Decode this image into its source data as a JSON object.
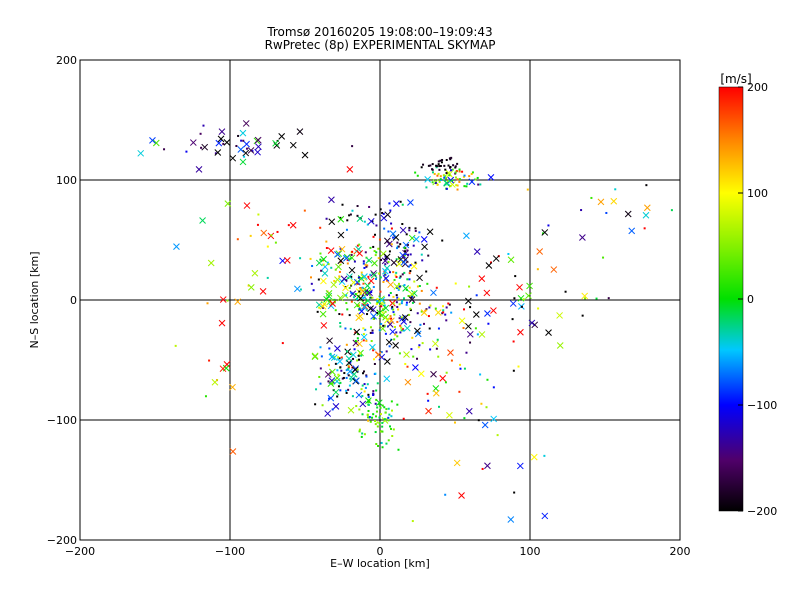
{
  "title_line1": "Tromsø 20160205 19:08:00–19:09:43",
  "title_line2": "RwPretec (8p) EXPERIMENTAL SKYMAP",
  "chart_data": {
    "type": "scatter",
    "title": "Tromsø 20160205 19:08:00–19:09:43",
    "subtitle": "RwPretec (8p) EXPERIMENTAL SKYMAP",
    "xlabel": "E–W location [km]",
    "ylabel": "N–S location [km]",
    "xlim": [
      -200,
      200
    ],
    "ylim": [
      -200,
      200
    ],
    "xticks": [
      -200,
      -100,
      0,
      100,
      200
    ],
    "yticks": [
      -200,
      -100,
      0,
      100,
      200
    ],
    "grid": true,
    "colorbar": {
      "label": "[m/s]",
      "range": [
        -200,
        200
      ],
      "ticks": [
        -200,
        -100,
        0,
        100,
        200
      ]
    },
    "markers": [
      "dot",
      "cross"
    ],
    "clusters": [
      {
        "x": -95,
        "y": 130,
        "sx": 25,
        "sy": 8,
        "n": 45,
        "v": -150,
        "vs": 80,
        "crossFrac": 0.7
      },
      {
        "x": 50,
        "y": 100,
        "sx": 10,
        "sy": 5,
        "n": 70,
        "v": 20,
        "vs": 90,
        "crossFrac": 0.1
      },
      {
        "x": 42,
        "y": 112,
        "sx": 6,
        "sy": 4,
        "n": 30,
        "v": -190,
        "vs": 10,
        "crossFrac": 0.0
      },
      {
        "x": 0,
        "y": 0,
        "sx": 18,
        "sy": 25,
        "n": 260,
        "v": 0,
        "vs": 140,
        "crossFrac": 0.25
      },
      {
        "x": -20,
        "y": 20,
        "sx": 12,
        "sy": 15,
        "n": 90,
        "v": 50,
        "vs": 140,
        "crossFrac": 0.35
      },
      {
        "x": 0,
        "y": -100,
        "sx": 6,
        "sy": 10,
        "n": 70,
        "v": 10,
        "vs": 40,
        "crossFrac": 0.05
      },
      {
        "x": -20,
        "y": -60,
        "sx": 12,
        "sy": 14,
        "n": 110,
        "v": -80,
        "vs": 110,
        "crossFrac": 0.3
      },
      {
        "x": 15,
        "y": 40,
        "sx": 8,
        "sy": 12,
        "n": 50,
        "v": -160,
        "vs": 60,
        "crossFrac": 0.4
      },
      {
        "x": -10,
        "y": 70,
        "sx": 15,
        "sy": 8,
        "n": 40,
        "v": -150,
        "vs": 80,
        "crossFrac": 0.3
      },
      {
        "x": 30,
        "y": -20,
        "sx": 20,
        "sy": 20,
        "n": 70,
        "v": -50,
        "vs": 150,
        "crossFrac": 0.2
      },
      {
        "x": 90,
        "y": 10,
        "sx": 25,
        "sy": 25,
        "n": 50,
        "v": -20,
        "vs": 160,
        "crossFrac": 0.5
      },
      {
        "x": 55,
        "y": -80,
        "sx": 25,
        "sy": 25,
        "n": 35,
        "v": 30,
        "vs": 140,
        "crossFrac": 0.25
      },
      {
        "x": -70,
        "y": 40,
        "sx": 25,
        "sy": 30,
        "n": 35,
        "v": 100,
        "vs": 130,
        "crossFrac": 0.4
      },
      {
        "x": -100,
        "y": -50,
        "sx": 20,
        "sy": 30,
        "n": 14,
        "v": 150,
        "vs": 60,
        "crossFrac": 0.6
      },
      {
        "x": 150,
        "y": 70,
        "sx": 30,
        "sy": 20,
        "n": 18,
        "v": -40,
        "vs": 180,
        "crossFrac": 0.5
      },
      {
        "x": 80,
        "y": -160,
        "sx": 40,
        "sy": 20,
        "n": 10,
        "v": 60,
        "vs": 150,
        "crossFrac": 0.5
      }
    ]
  }
}
